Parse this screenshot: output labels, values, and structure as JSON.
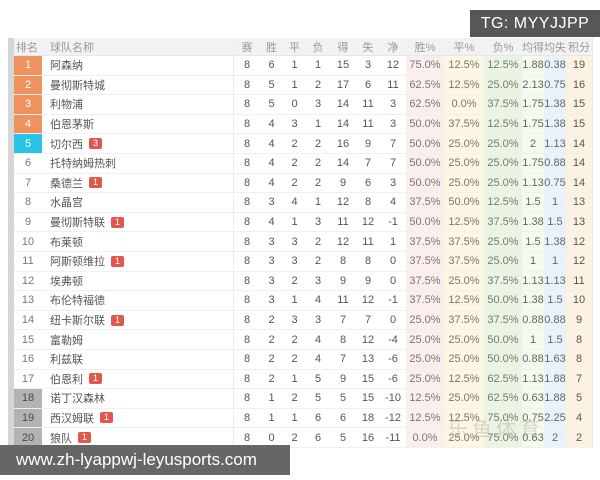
{
  "tg_badge": {
    "text": "TG: MYYJJPP"
  },
  "footer": {
    "url": "www.zh-lyappwj-leyusports.com"
  },
  "watermark": "乐鱼体育",
  "colors": {
    "rank_top4": "#f0925e",
    "rank_fifth": "#29c3e8",
    "rank_relegation": "#b3b3b3",
    "badge_red": "#e2574c",
    "band_win_pct": "#fdeeee",
    "band_draw_pct": "#fcf7e2",
    "band_loss_pct": "#e9f5e2",
    "band_avg_for": "#f3faee",
    "band_avg_against": "#e9f1fa",
    "band_points": "#fdf2e1",
    "overlay_gray": "#57575a"
  },
  "table": {
    "columns": [
      {
        "key": "rank",
        "label": "排名"
      },
      {
        "key": "team",
        "label": "球队名称"
      },
      {
        "key": "p",
        "label": "赛"
      },
      {
        "key": "w",
        "label": "胜"
      },
      {
        "key": "d",
        "label": "平"
      },
      {
        "key": "l",
        "label": "负"
      },
      {
        "key": "gf",
        "label": "得"
      },
      {
        "key": "ga",
        "label": "失"
      },
      {
        "key": "gd",
        "label": "净"
      },
      {
        "key": "wpct",
        "label": "胜%"
      },
      {
        "key": "dpct",
        "label": "平%"
      },
      {
        "key": "lpct",
        "label": "负%"
      },
      {
        "key": "avgf",
        "label": "均得"
      },
      {
        "key": "avga",
        "label": "均失"
      },
      {
        "key": "pts",
        "label": "积分"
      }
    ],
    "rows": [
      {
        "rank": "1",
        "rank_class": "top",
        "team": "阿森纳",
        "badge": "",
        "p": "8",
        "w": "6",
        "d": "1",
        "l": "1",
        "gf": "15",
        "ga": "3",
        "gd": "12",
        "wpct": "75.0%",
        "dpct": "12.5%",
        "lpct": "12.5%",
        "avgf": "1.88",
        "avga": "0.38",
        "pts": "19"
      },
      {
        "rank": "2",
        "rank_class": "top",
        "team": "曼彻斯特城",
        "badge": "",
        "p": "8",
        "w": "5",
        "d": "1",
        "l": "2",
        "gf": "17",
        "ga": "6",
        "gd": "11",
        "wpct": "62.5%",
        "dpct": "12.5%",
        "lpct": "25.0%",
        "avgf": "2.13",
        "avga": "0.75",
        "pts": "16"
      },
      {
        "rank": "3",
        "rank_class": "top",
        "team": "利物浦",
        "badge": "",
        "p": "8",
        "w": "5",
        "d": "0",
        "l": "3",
        "gf": "14",
        "ga": "11",
        "gd": "3",
        "wpct": "62.5%",
        "dpct": "0.0%",
        "lpct": "37.5%",
        "avgf": "1.75",
        "avga": "1.38",
        "pts": "15"
      },
      {
        "rank": "4",
        "rank_class": "top",
        "team": "伯恩茅斯",
        "badge": "",
        "p": "8",
        "w": "4",
        "d": "3",
        "l": "1",
        "gf": "14",
        "ga": "11",
        "gd": "3",
        "wpct": "50.0%",
        "dpct": "37.5%",
        "lpct": "12.5%",
        "avgf": "1.75",
        "avga": "1.38",
        "pts": "15"
      },
      {
        "rank": "5",
        "rank_class": "cl",
        "team": "切尔西",
        "badge": "3",
        "p": "8",
        "w": "4",
        "d": "2",
        "l": "2",
        "gf": "16",
        "ga": "9",
        "gd": "7",
        "wpct": "50.0%",
        "dpct": "25.0%",
        "lpct": "25.0%",
        "avgf": "2",
        "avga": "1.13",
        "pts": "14"
      },
      {
        "rank": "6",
        "rank_class": "none",
        "team": "托特纳姆热刺",
        "badge": "",
        "p": "8",
        "w": "4",
        "d": "2",
        "l": "2",
        "gf": "14",
        "ga": "7",
        "gd": "7",
        "wpct": "50.0%",
        "dpct": "25.0%",
        "lpct": "25.0%",
        "avgf": "1.75",
        "avga": "0.88",
        "pts": "14"
      },
      {
        "rank": "7",
        "rank_class": "none",
        "team": "桑德兰",
        "badge": "1",
        "p": "8",
        "w": "4",
        "d": "2",
        "l": "2",
        "gf": "9",
        "ga": "6",
        "gd": "3",
        "wpct": "50.0%",
        "dpct": "25.0%",
        "lpct": "25.0%",
        "avgf": "1.13",
        "avga": "0.75",
        "pts": "14"
      },
      {
        "rank": "8",
        "rank_class": "none",
        "team": "水晶宫",
        "badge": "",
        "p": "8",
        "w": "3",
        "d": "4",
        "l": "1",
        "gf": "12",
        "ga": "8",
        "gd": "4",
        "wpct": "37.5%",
        "dpct": "50.0%",
        "lpct": "12.5%",
        "avgf": "1.5",
        "avga": "1",
        "pts": "13"
      },
      {
        "rank": "9",
        "rank_class": "none",
        "team": "曼彻斯特联",
        "badge": "1",
        "p": "8",
        "w": "4",
        "d": "1",
        "l": "3",
        "gf": "11",
        "ga": "12",
        "gd": "-1",
        "wpct": "50.0%",
        "dpct": "12.5%",
        "lpct": "37.5%",
        "avgf": "1.38",
        "avga": "1.5",
        "pts": "13"
      },
      {
        "rank": "10",
        "rank_class": "none",
        "team": "布莱顿",
        "badge": "",
        "p": "8",
        "w": "3",
        "d": "3",
        "l": "2",
        "gf": "12",
        "ga": "11",
        "gd": "1",
        "wpct": "37.5%",
        "dpct": "37.5%",
        "lpct": "25.0%",
        "avgf": "1.5",
        "avga": "1.38",
        "pts": "12"
      },
      {
        "rank": "11",
        "rank_class": "none",
        "team": "阿斯顿维拉",
        "badge": "1",
        "p": "8",
        "w": "3",
        "d": "3",
        "l": "2",
        "gf": "8",
        "ga": "8",
        "gd": "0",
        "wpct": "37.5%",
        "dpct": "37.5%",
        "lpct": "25.0%",
        "avgf": "1",
        "avga": "1",
        "pts": "12"
      },
      {
        "rank": "12",
        "rank_class": "none",
        "team": "埃弗顿",
        "badge": "",
        "p": "8",
        "w": "3",
        "d": "2",
        "l": "3",
        "gf": "9",
        "ga": "9",
        "gd": "0",
        "wpct": "37.5%",
        "dpct": "25.0%",
        "lpct": "37.5%",
        "avgf": "1.13",
        "avga": "1.13",
        "pts": "11"
      },
      {
        "rank": "13",
        "rank_class": "none",
        "team": "布伦特福德",
        "badge": "",
        "p": "8",
        "w": "3",
        "d": "1",
        "l": "4",
        "gf": "11",
        "ga": "12",
        "gd": "-1",
        "wpct": "37.5%",
        "dpct": "12.5%",
        "lpct": "50.0%",
        "avgf": "1.38",
        "avga": "1.5",
        "pts": "10"
      },
      {
        "rank": "14",
        "rank_class": "none",
        "team": "纽卡斯尔联",
        "badge": "1",
        "p": "8",
        "w": "2",
        "d": "3",
        "l": "3",
        "gf": "7",
        "ga": "7",
        "gd": "0",
        "wpct": "25.0%",
        "dpct": "37.5%",
        "lpct": "37.5%",
        "avgf": "0.88",
        "avga": "0.88",
        "pts": "9"
      },
      {
        "rank": "15",
        "rank_class": "none",
        "team": "富勒姆",
        "badge": "",
        "p": "8",
        "w": "2",
        "d": "2",
        "l": "4",
        "gf": "8",
        "ga": "12",
        "gd": "-4",
        "wpct": "25.0%",
        "dpct": "25.0%",
        "lpct": "50.0%",
        "avgf": "1",
        "avga": "1.5",
        "pts": "8"
      },
      {
        "rank": "16",
        "rank_class": "none",
        "team": "利兹联",
        "badge": "",
        "p": "8",
        "w": "2",
        "d": "2",
        "l": "4",
        "gf": "7",
        "ga": "13",
        "gd": "-6",
        "wpct": "25.0%",
        "dpct": "25.0%",
        "lpct": "50.0%",
        "avgf": "0.88",
        "avga": "1.63",
        "pts": "8"
      },
      {
        "rank": "17",
        "rank_class": "none",
        "team": "伯恩利",
        "badge": "1",
        "p": "8",
        "w": "2",
        "d": "1",
        "l": "5",
        "gf": "9",
        "ga": "15",
        "gd": "-6",
        "wpct": "25.0%",
        "dpct": "12.5%",
        "lpct": "62.5%",
        "avgf": "1.13",
        "avga": "1.88",
        "pts": "7"
      },
      {
        "rank": "18",
        "rank_class": "releg",
        "team": "诺丁汉森林",
        "badge": "",
        "p": "8",
        "w": "1",
        "d": "2",
        "l": "5",
        "gf": "5",
        "ga": "15",
        "gd": "-10",
        "wpct": "12.5%",
        "dpct": "25.0%",
        "lpct": "62.5%",
        "avgf": "0.63",
        "avga": "1.88",
        "pts": "5"
      },
      {
        "rank": "19",
        "rank_class": "releg",
        "team": "西汉姆联",
        "badge": "1",
        "p": "8",
        "w": "1",
        "d": "1",
        "l": "6",
        "gf": "6",
        "ga": "18",
        "gd": "-12",
        "wpct": "12.5%",
        "dpct": "12.5%",
        "lpct": "75.0%",
        "avgf": "0.75",
        "avga": "2.25",
        "pts": "4"
      },
      {
        "rank": "20",
        "rank_class": "releg",
        "team": "狼队",
        "badge": "1",
        "p": "8",
        "w": "0",
        "d": "2",
        "l": "6",
        "gf": "5",
        "ga": "16",
        "gd": "-11",
        "wpct": "0.0%",
        "dpct": "25.0%",
        "lpct": "75.0%",
        "avgf": "0.63",
        "avga": "2",
        "pts": "2"
      }
    ]
  }
}
